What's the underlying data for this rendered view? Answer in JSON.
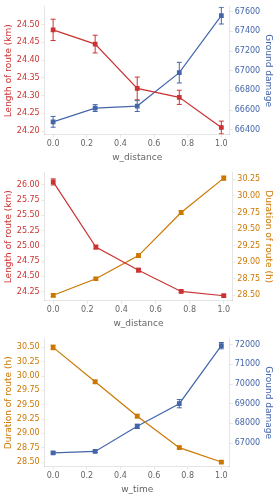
{
  "chart_data": [
    {
      "type": "line",
      "x_label": "w_distance",
      "y_label": "Length of route (km)",
      "y2_label": "Ground damage",
      "grid": false,
      "x": [
        0.0,
        0.25,
        0.5,
        0.75,
        1.0
      ],
      "xlim": [
        -0.05,
        1.05
      ],
      "xticks": [
        {
          "value": 0.0,
          "label": "0.0"
        },
        0.2,
        0.4,
        0.6,
        0.8,
        {
          "value": 1.0,
          "label": "1.0"
        }
      ],
      "ylim": [
        24.19,
        24.55
      ],
      "yticks": [
        {
          "value": 24.2,
          "label": "24.20"
        },
        24.25,
        {
          "value": 24.3,
          "label": "24.30"
        },
        24.35,
        {
          "value": 24.4,
          "label": "24.40"
        },
        24.45,
        {
          "value": 24.5,
          "label": "24.50"
        }
      ],
      "y2lim": [
        66350,
        67650
      ],
      "y2ticks": [
        66400,
        66600,
        66800,
        67000,
        67200,
        67400,
        67600
      ],
      "series": [
        {
          "color": "#cc3333",
          "marker": "square",
          "axis": "y",
          "values": [
            24.485,
            24.445,
            24.32,
            24.295,
            24.21
          ],
          "yerr": [
            0.03,
            0.025,
            0.032,
            0.02,
            0.018
          ]
        },
        {
          "color": "#4466aa",
          "marker": "square",
          "axis": "y2",
          "values": [
            66480,
            66620,
            66640,
            66980,
            67560
          ],
          "yerr": [
            55,
            35,
            55,
            105,
            85
          ]
        }
      ]
    },
    {
      "type": "line",
      "x_label": "w_distance",
      "y_label": "Length of route (km)",
      "y2_label": "Duration of route (h)",
      "grid": false,
      "x": [
        0.0,
        0.25,
        0.5,
        0.75,
        1.0
      ],
      "xlim": [
        -0.05,
        1.05
      ],
      "xticks": [
        {
          "value": 0.0,
          "label": "0.0"
        },
        0.2,
        0.4,
        0.6,
        0.8,
        {
          "value": 1.0,
          "label": "1.0"
        }
      ],
      "ylim": [
        24.1,
        26.2
      ],
      "yticks": [
        24.25,
        {
          "value": 24.5,
          "label": "24.50"
        },
        24.75,
        {
          "value": 25.0,
          "label": "25.00"
        },
        25.25,
        {
          "value": 25.5,
          "label": "25.50"
        },
        25.75,
        {
          "value": 26.0,
          "label": "26.00"
        }
      ],
      "y2lim": [
        28.42,
        30.35
      ],
      "y2ticks": [
        {
          "value": 28.5,
          "label": "28.50"
        },
        28.75,
        {
          "value": 29.0,
          "label": "29.00"
        },
        29.25,
        {
          "value": 29.5,
          "label": "29.50"
        },
        29.75,
        {
          "value": 30.0,
          "label": "30.00"
        },
        30.25
      ],
      "series": [
        {
          "color": "#cc3333",
          "marker": "square",
          "axis": "y",
          "values": [
            26.05,
            24.98,
            24.6,
            24.25,
            24.18
          ],
          "yerr": [
            0.05,
            0.03,
            0.03,
            0.02,
            0.02
          ]
        },
        {
          "color": "#cc7700",
          "marker": "square",
          "axis": "y2",
          "values": [
            28.5,
            28.75,
            29.1,
            29.75,
            30.27
          ],
          "yerr": [
            0.02,
            0.02,
            0.025,
            0.03,
            0.03
          ]
        }
      ]
    },
    {
      "type": "line",
      "x_label": "w_time",
      "y_label": "Duration of route (h)",
      "y2_label": "Ground damage",
      "grid": false,
      "x": [
        0.0,
        0.25,
        0.5,
        0.75,
        1.0
      ],
      "xlim": [
        -0.05,
        1.05
      ],
      "xticks": [
        {
          "value": 0.0,
          "label": "0.0"
        },
        0.2,
        0.4,
        0.6,
        0.8,
        {
          "value": 1.0,
          "label": "1.0"
        }
      ],
      "ylim": [
        28.42,
        30.65
      ],
      "yticks": [
        {
          "value": 28.5,
          "label": "28.50"
        },
        28.75,
        {
          "value": 29.0,
          "label": "29.00"
        },
        29.25,
        {
          "value": 29.5,
          "label": "29.50"
        },
        29.75,
        {
          "value": 30.0,
          "label": "30.00"
        },
        30.25,
        {
          "value": 30.5,
          "label": "30.50"
        }
      ],
      "y2lim": [
        65800,
        72300
      ],
      "y2ticks": [
        67000,
        68000,
        69000,
        70000,
        71000,
        72000
      ],
      "series": [
        {
          "color": "#cc7700",
          "marker": "square",
          "axis": "y",
          "values": [
            30.5,
            29.9,
            29.3,
            28.75,
            28.5
          ],
          "yerr": [
            0.04,
            0.03,
            0.03,
            0.025,
            0.02
          ]
        },
        {
          "color": "#4466aa",
          "marker": "square",
          "axis": "y2",
          "values": [
            66500,
            66570,
            67850,
            69000,
            71950
          ],
          "yerr": [
            55,
            55,
            110,
            210,
            160
          ]
        }
      ]
    }
  ]
}
